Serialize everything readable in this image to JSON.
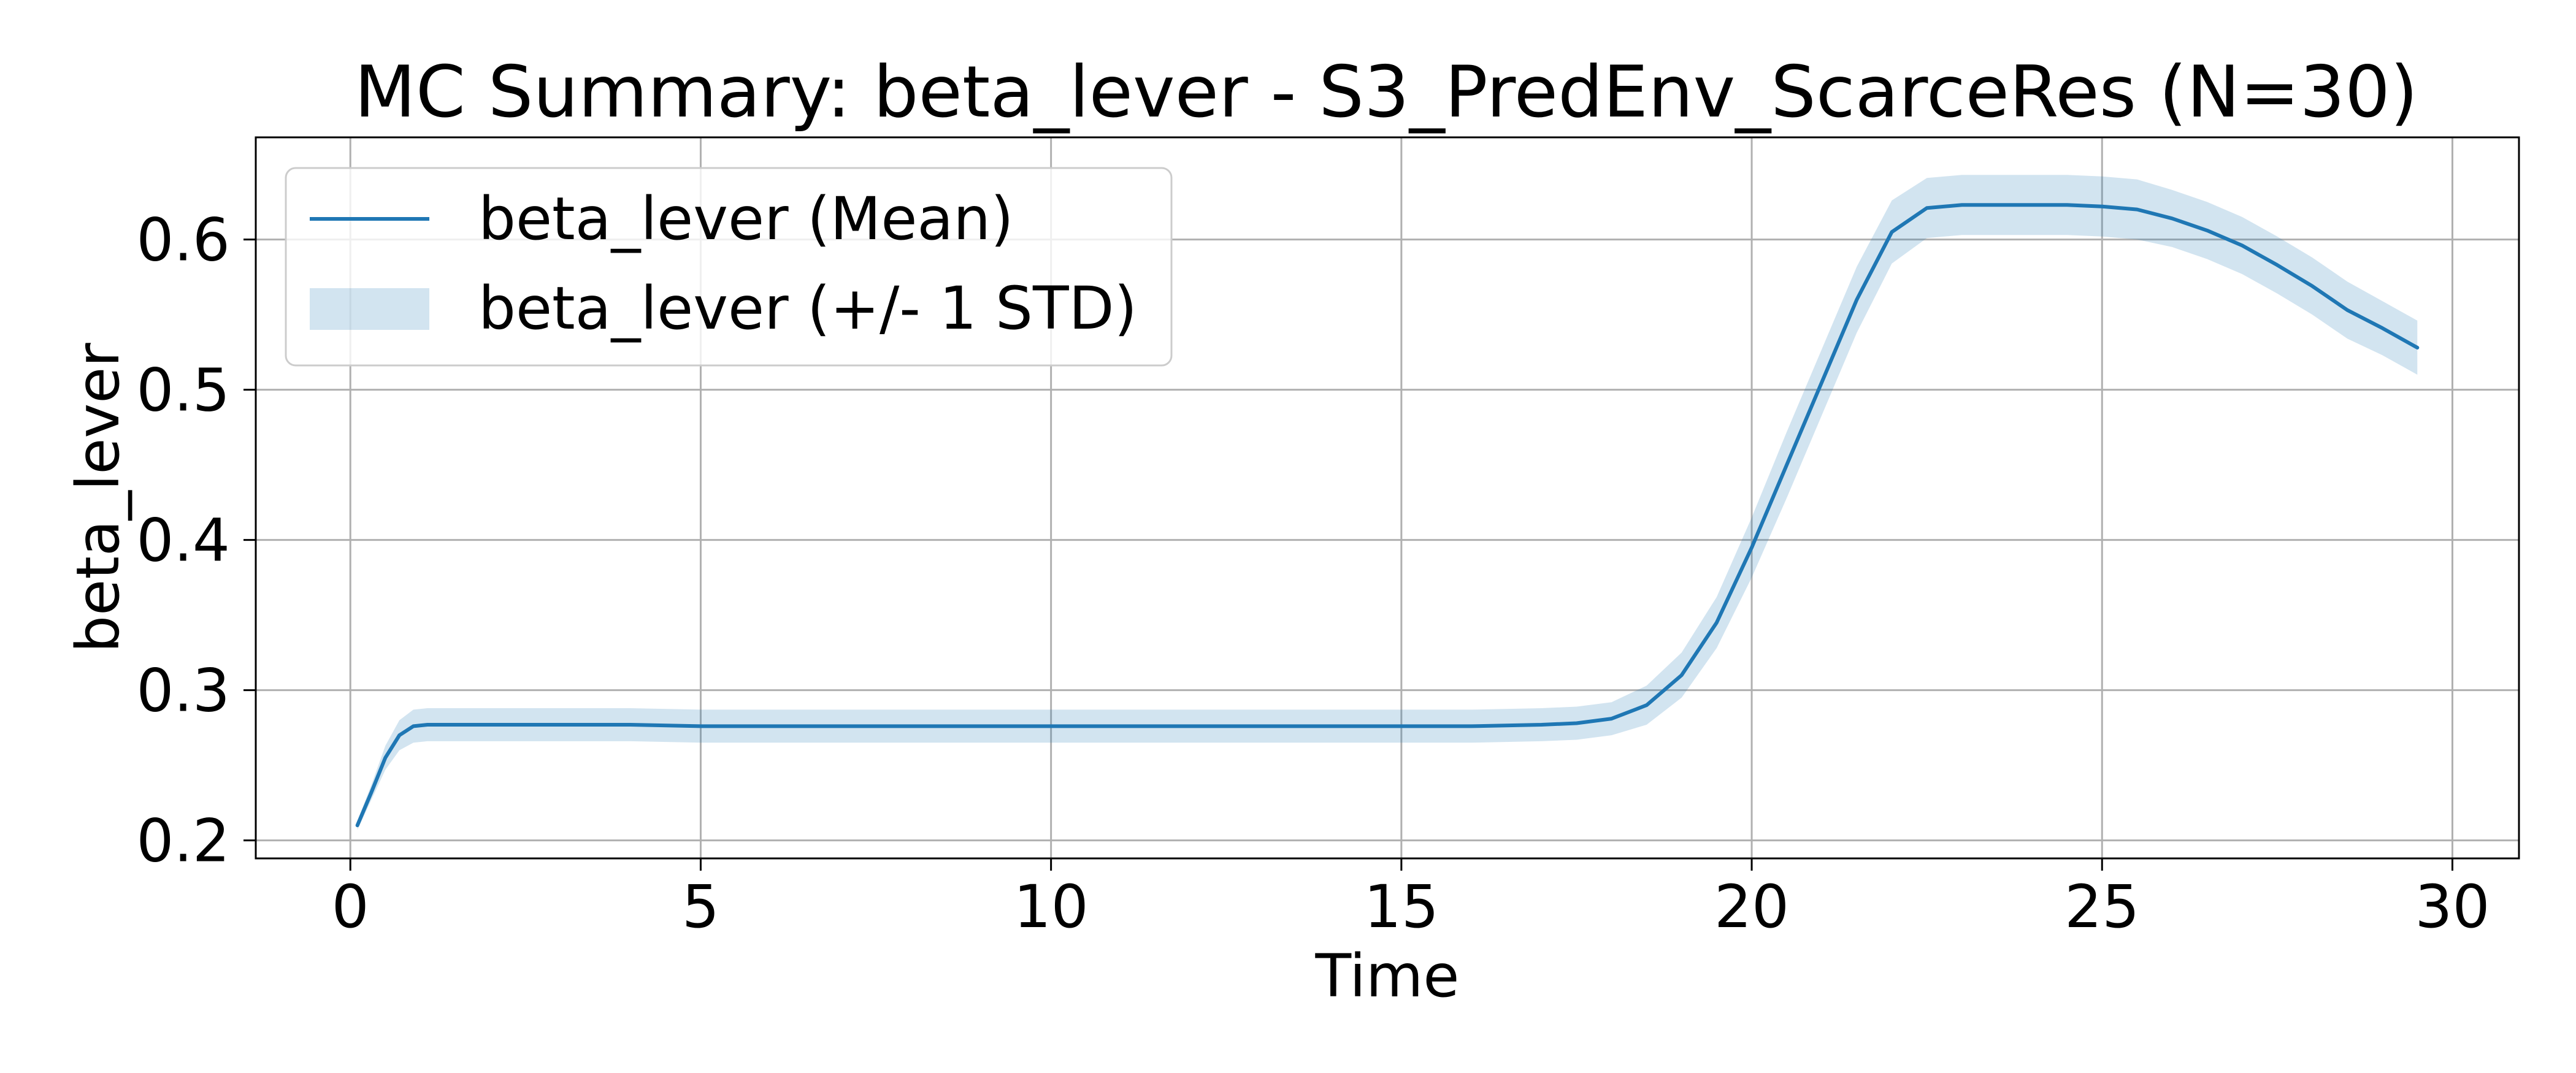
{
  "chart_data": {
    "type": "line",
    "title": "MC Summary: beta_lever - S3_PredEnv_ScarceRes (N=30)",
    "xlabel": "Time",
    "ylabel": "beta_lever",
    "xlim": [
      -1.35,
      30.95
    ],
    "ylim": [
      0.188,
      0.668
    ],
    "xticks": [
      0,
      5,
      10,
      15,
      20,
      25,
      30
    ],
    "xtick_labels": [
      "0",
      "5",
      "10",
      "15",
      "20",
      "25",
      "30"
    ],
    "yticks": [
      0.2,
      0.3,
      0.4,
      0.5,
      0.6
    ],
    "ytick_labels": [
      "0.2",
      "0.3",
      "0.4",
      "0.5",
      "0.6"
    ],
    "grid": true,
    "legend_position": "top-left",
    "colors": {
      "line": "#1f77b4",
      "band": "#1f77b4",
      "grid": "#b0b0b0"
    },
    "series": [
      {
        "name": "beta_lever (Mean)",
        "kind": "line",
        "x": [
          0.1,
          0.3,
          0.5,
          0.7,
          0.9,
          1.1,
          1.5,
          2,
          3,
          4,
          5,
          6,
          8,
          10,
          12,
          14,
          15,
          16,
          17,
          17.5,
          18,
          18.5,
          19,
          19.5,
          20,
          20.5,
          21,
          21.5,
          22,
          22.5,
          23,
          23.5,
          24,
          24.5,
          25,
          25.5,
          26,
          26.5,
          27,
          27.5,
          28,
          28.5,
          29,
          29.5
        ],
        "y": [
          0.21,
          0.232,
          0.255,
          0.27,
          0.276,
          0.277,
          0.277,
          0.277,
          0.277,
          0.277,
          0.276,
          0.276,
          0.276,
          0.276,
          0.276,
          0.276,
          0.276,
          0.276,
          0.277,
          0.278,
          0.281,
          0.29,
          0.31,
          0.345,
          0.395,
          0.45,
          0.505,
          0.56,
          0.605,
          0.621,
          0.623,
          0.623,
          0.623,
          0.623,
          0.622,
          0.62,
          0.614,
          0.606,
          0.596,
          0.583,
          0.569,
          0.553,
          0.541,
          0.528
        ]
      },
      {
        "name": "beta_lever (+/- 1 STD)",
        "kind": "band",
        "std": [
          0.003,
          0.005,
          0.008,
          0.01,
          0.011,
          0.011,
          0.011,
          0.011,
          0.011,
          0.011,
          0.011,
          0.011,
          0.011,
          0.011,
          0.011,
          0.011,
          0.011,
          0.011,
          0.011,
          0.011,
          0.011,
          0.013,
          0.015,
          0.017,
          0.02,
          0.022,
          0.022,
          0.022,
          0.021,
          0.02,
          0.02,
          0.02,
          0.02,
          0.02,
          0.02,
          0.02,
          0.019,
          0.019,
          0.019,
          0.019,
          0.019,
          0.019,
          0.018,
          0.018
        ]
      }
    ]
  }
}
